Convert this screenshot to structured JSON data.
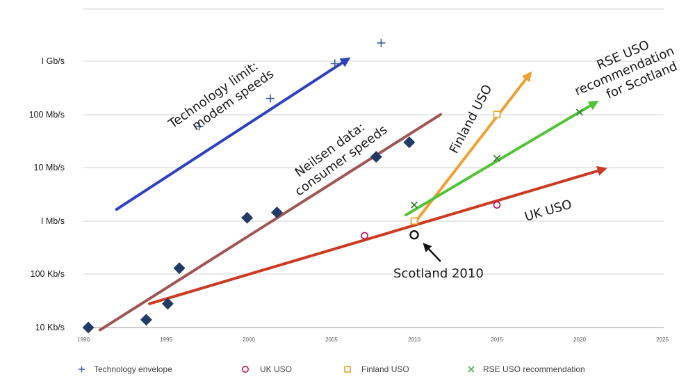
{
  "chart_data": {
    "type": "scatter",
    "y_scale": "log",
    "ylim_bps": [
      10000,
      3000000000
    ],
    "xlim": [
      1990,
      2025
    ],
    "grid": "horizontal",
    "legend_position": "bottom",
    "x_ticks": [
      "1990",
      "1995",
      "2000",
      "2005",
      "2010",
      "2015",
      "2020",
      "2025"
    ],
    "y_ticks": [
      {
        "label": "10 Kb/s",
        "bps": 10000
      },
      {
        "label": "100 Kb/s",
        "bps": 100000
      },
      {
        "label": "I Mb/s",
        "bps": 1000000
      },
      {
        "label": "10 Mb/s",
        "bps": 10000000
      },
      {
        "label": "100 Mb/s",
        "bps": 100000000
      },
      {
        "label": "I Gb/s",
        "bps": 1000000000
      }
    ],
    "series": [
      {
        "name": "Technology envelope",
        "marker": "plus",
        "color": "#3a5a9e",
        "points": [
          [
            1997.0,
            60000000
          ],
          [
            2001.3,
            200000000
          ],
          [
            2005.2,
            900000000
          ],
          [
            2008.0,
            2200000000
          ]
        ]
      },
      {
        "name": "UK USO",
        "marker": "circle",
        "color": "#c0145a",
        "points": [
          [
            2007.0,
            530000
          ],
          [
            2015.0,
            2000000
          ]
        ]
      },
      {
        "name": "Finland USO",
        "marker": "square",
        "color": "#f0a030",
        "points": [
          [
            2010.0,
            1000000
          ],
          [
            2015.0,
            100000000
          ]
        ]
      },
      {
        "name": "RSE USO recommendation",
        "marker": "cross",
        "color": "#4caf50",
        "points": [
          [
            2010.0,
            2000000
          ],
          [
            2015.0,
            15000000
          ],
          [
            2020.0,
            110000000
          ]
        ]
      },
      {
        "name": "",
        "marker": "diamond",
        "color": "#1f3b66",
        "points": [
          [
            1990.3,
            10000
          ],
          [
            1993.8,
            14000
          ],
          [
            1995.1,
            28000
          ],
          [
            1995.8,
            130000
          ],
          [
            1999.9,
            1150000
          ],
          [
            2001.7,
            1450000
          ],
          [
            2007.7,
            16000000
          ],
          [
            2009.7,
            30000000
          ]
        ]
      },
      {
        "name": "",
        "marker": "circle-black",
        "color": "#111111",
        "points": [
          [
            2010.0,
            550000
          ]
        ]
      }
    ],
    "trend_lines": [
      {
        "color": "#2e3fc0",
        "from": [
          1992.0,
          1650000
        ],
        "to": [
          2006.0,
          1100000000
        ]
      },
      {
        "color": "#a05555",
        "from": [
          1991.0,
          9000
        ],
        "to": [
          2011.6,
          100000000
        ]
      },
      {
        "color": "#cc3a22",
        "from": [
          1994.0,
          28000
        ],
        "to": [
          2021.5,
          9500000
        ]
      },
      {
        "color": "#f0a030",
        "from": [
          2010.0,
          900000
        ],
        "to": [
          2017.0,
          580000000
        ]
      },
      {
        "color": "#52c236",
        "from": [
          2009.5,
          1300000
        ],
        "to": [
          2021.0,
          170000000
        ]
      }
    ],
    "annotations": [
      {
        "id": "tech",
        "lines": [
          "Technology limit:",
          "modem speeds"
        ]
      },
      {
        "id": "neilsen",
        "lines": [
          "Neilsen data:",
          "consumer speeds"
        ]
      },
      {
        "id": "finland",
        "lines": [
          "Finland USO"
        ]
      },
      {
        "id": "rse",
        "lines": [
          "RSE USO",
          "recommendation",
          "for Scotland"
        ]
      },
      {
        "id": "uk",
        "lines": [
          "UK USO"
        ]
      },
      {
        "id": "scotland",
        "lines": [
          "Scotland 2010"
        ]
      }
    ]
  }
}
